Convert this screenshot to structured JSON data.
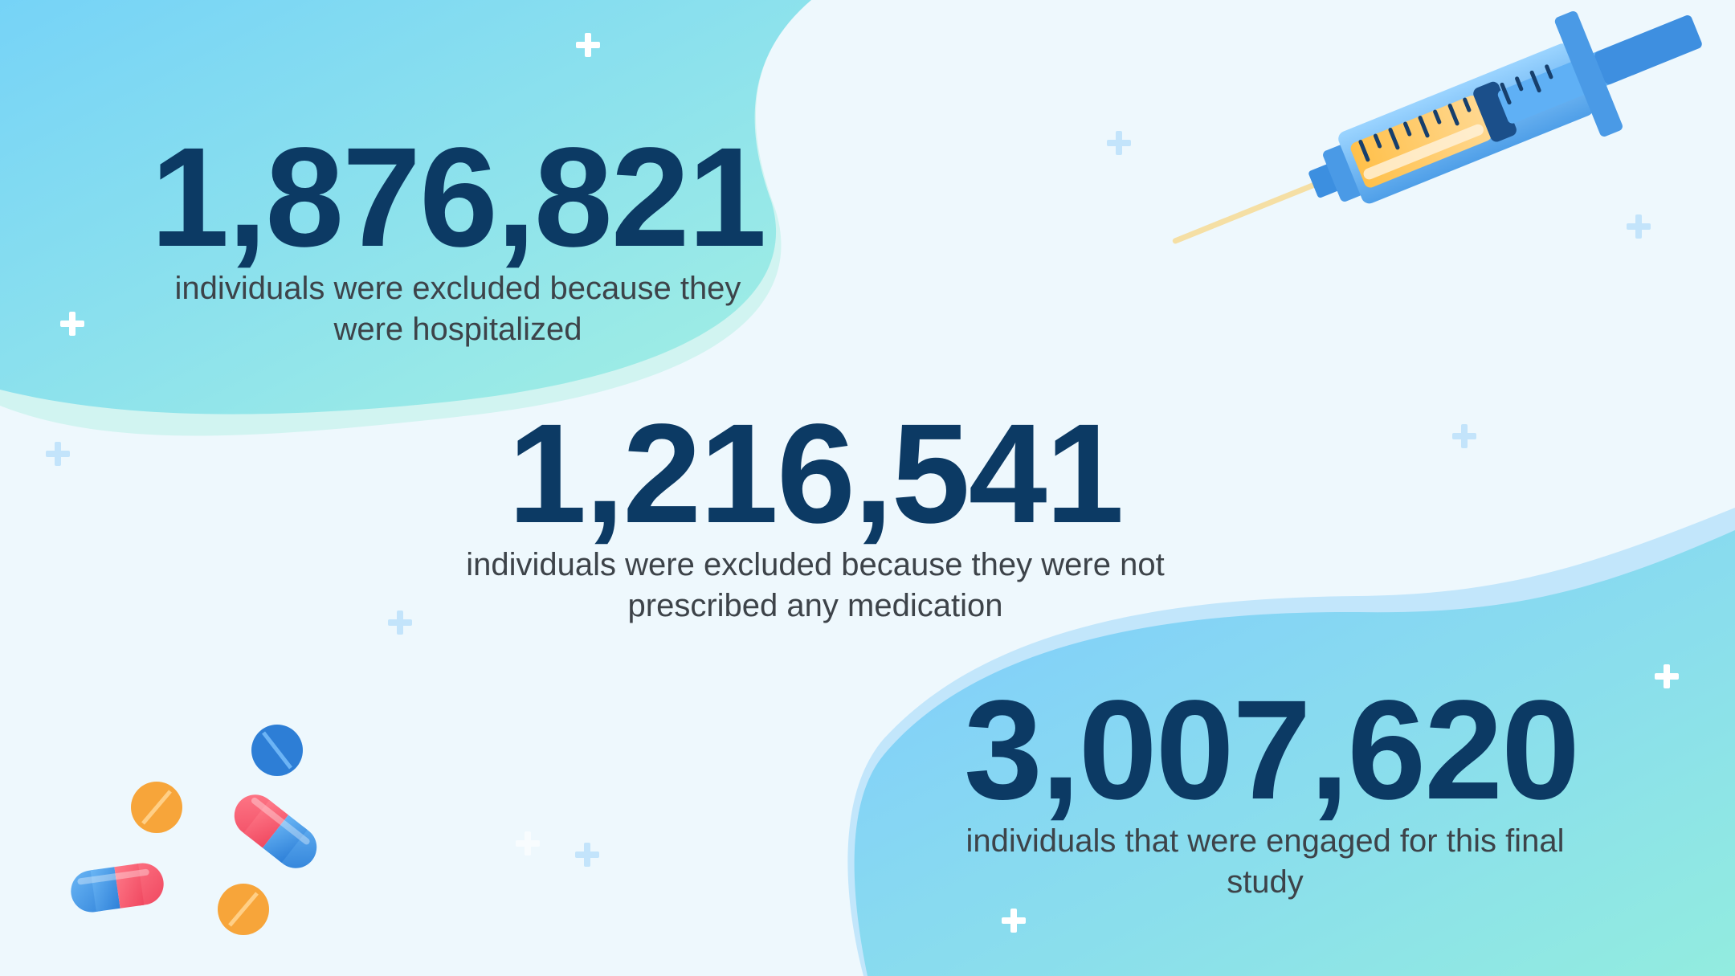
{
  "stats": [
    {
      "value": "1,876,821",
      "description": "individuals were excluded because they were hospitalized"
    },
    {
      "value": "1,216,541",
      "description": "individuals were excluded because they were not prescribed any medication"
    },
    {
      "value": "3,007,620",
      "description": "individuals that were engaged for this final study"
    }
  ],
  "colors": {
    "background": "#eef8fd",
    "number": "#0c3a64",
    "text": "#3d4349",
    "blob_top": "#7fdcf2",
    "blob_bottom": "#7fd0fb"
  },
  "decorations": {
    "syringe": "syringe-icon",
    "pills": "pills-icon",
    "sparkles": "plus-sparkle-icon"
  }
}
